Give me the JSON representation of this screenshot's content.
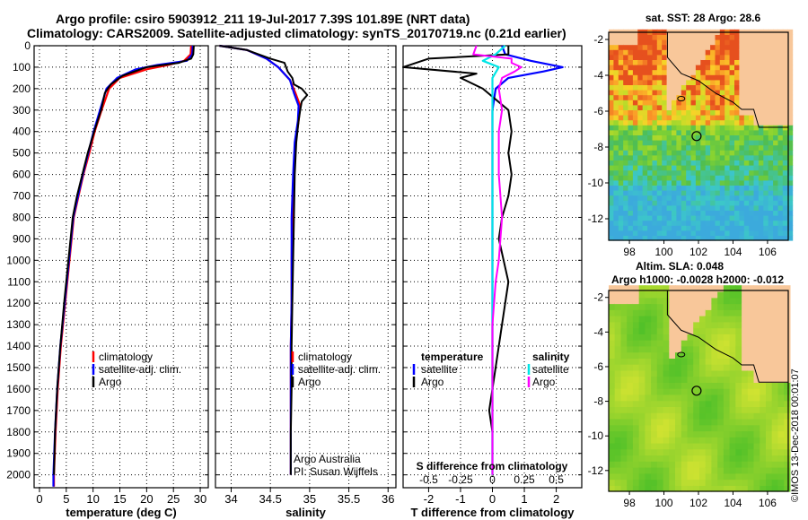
{
  "header": {
    "line1": "Argo profile: csiro 5903912_211 19-Jul-2017 7.39S 101.89E (NRT data)",
    "line2": "Climatology: CARS2009. Satellite-adjusted climatology: synTS_20170719.nc (0.21d earlier)"
  },
  "watermark": "©IMOS 13-Dec-2018 00:01:07",
  "colors": {
    "climatology": "#ff0000",
    "satellite": "#0000ff",
    "argo": "#000000",
    "sat_salinity": "#00e5e5",
    "argo_salinity": "#ff00ff",
    "land": "#f8c79a"
  },
  "chart_data": [
    {
      "id": "temperature",
      "type": "line",
      "xlabel": "temperature (deg C)",
      "ylabel": "",
      "xlim": [
        -1,
        31.5
      ],
      "ylim": [
        2060,
        0
      ],
      "xticks": [
        0,
        5,
        10,
        15,
        20,
        25,
        30
      ],
      "xtick_labels": [
        "0",
        "5",
        "10",
        "15",
        "20",
        "25",
        "30"
      ],
      "yticks": [
        0,
        100,
        200,
        300,
        400,
        500,
        600,
        700,
        800,
        900,
        1000,
        1100,
        1200,
        1300,
        1400,
        1500,
        1600,
        1700,
        1800,
        1900,
        2000
      ],
      "ytick_labels": [
        "0",
        "100",
        "200",
        "300",
        "400",
        "500",
        "600",
        "700",
        "800",
        "900",
        "1000",
        "1100",
        "1200",
        "1300",
        "1400",
        "1500",
        "1600",
        "1700",
        "1800",
        "1900",
        "2000"
      ],
      "grid": true,
      "legend": {
        "position": "lower-right",
        "entries": [
          "climatology",
          "satellite-adj. clim.",
          "Argo"
        ]
      },
      "series": [
        {
          "name": "climatology",
          "color": "#ff0000",
          "x": [
            28.3,
            28.2,
            27.0,
            24.0,
            20.0,
            15.0,
            13.0,
            11.6,
            10.3,
            9.3,
            8.2,
            7.3,
            6.4,
            5.6,
            4.8,
            4.0,
            3.4,
            3.0,
            2.7,
            2.7
          ],
          "y": [
            0,
            40,
            70,
            90,
            110,
            150,
            200,
            300,
            400,
            500,
            600,
            700,
            800,
            1000,
            1200,
            1400,
            1600,
            1800,
            2000,
            2055
          ]
        },
        {
          "name": "satellite-adj. clim.",
          "color": "#0000ff",
          "x": [
            28.6,
            28.5,
            27.5,
            22.0,
            18.0,
            14.5,
            12.5,
            11.3,
            10.1,
            9.1,
            8.1,
            7.2,
            6.3,
            5.5,
            4.7,
            3.9,
            3.3,
            2.9,
            2.6,
            2.6
          ],
          "y": [
            0,
            40,
            70,
            90,
            110,
            150,
            200,
            300,
            400,
            500,
            600,
            700,
            800,
            1000,
            1200,
            1400,
            1600,
            1800,
            2000,
            2055
          ]
        },
        {
          "name": "Argo",
          "color": "#000000",
          "x": [
            28.8,
            28.7,
            28.3,
            26.0,
            20.0,
            15.5,
            13.3,
            12.2,
            11.5,
            10.2,
            9.0,
            8.0,
            7.0,
            6.2,
            5.4,
            4.6,
            3.9,
            3.3,
            2.9,
            2.7
          ],
          "y": [
            0,
            40,
            60,
            80,
            100,
            140,
            180,
            220,
            300,
            400,
            500,
            600,
            700,
            800,
            1000,
            1200,
            1400,
            1600,
            1800,
            2000
          ]
        }
      ]
    },
    {
      "id": "salinity",
      "type": "line",
      "xlabel": "salinity",
      "ylabel": "",
      "xlim": [
        33.8,
        36.1
      ],
      "ylim": [
        2060,
        0
      ],
      "xticks": [
        34,
        34.5,
        35,
        35.5,
        36
      ],
      "xtick_labels": [
        "34",
        "34.5",
        "35",
        "35.5",
        "36"
      ],
      "grid": true,
      "legend": {
        "position": "lower-right",
        "entries": [
          "climatology",
          "satellite-adj. clim.",
          "Argo"
        ]
      },
      "annotations": [
        "Argo Australia",
        "PI: Susan Wijffels"
      ],
      "series": [
        {
          "name": "climatology",
          "color": "#ff0000",
          "x": [
            33.85,
            34.2,
            34.45,
            34.6,
            34.75,
            34.82,
            34.88,
            34.86,
            34.82,
            34.8,
            34.78,
            34.77,
            34.77,
            34.76,
            34.76,
            34.76,
            34.76
          ],
          "y": [
            0,
            20,
            60,
            100,
            160,
            220,
            280,
            350,
            450,
            600,
            800,
            1000,
            1200,
            1400,
            1600,
            1800,
            2000
          ]
        },
        {
          "name": "satellite-adj. clim.",
          "color": "#0000ff",
          "x": [
            33.85,
            34.2,
            34.45,
            34.6,
            34.75,
            34.8,
            34.86,
            34.85,
            34.81,
            34.79,
            34.77,
            34.77,
            34.77,
            34.76,
            34.76,
            34.76,
            34.76
          ],
          "y": [
            0,
            20,
            60,
            100,
            160,
            220,
            280,
            350,
            450,
            600,
            800,
            1000,
            1200,
            1400,
            1600,
            1800,
            2000
          ]
        },
        {
          "name": "Argo",
          "color": "#000000",
          "x": [
            33.85,
            34.2,
            34.5,
            34.68,
            34.72,
            34.78,
            34.8,
            34.9,
            34.97,
            34.9,
            34.88,
            34.86,
            34.83,
            34.81,
            34.8,
            34.79,
            34.78,
            34.77,
            34.77,
            34.76,
            34.76
          ],
          "y": [
            0,
            20,
            60,
            80,
            120,
            150,
            180,
            200,
            230,
            260,
            300,
            350,
            450,
            600,
            800,
            1000,
            1200,
            1400,
            1600,
            1800,
            2000
          ]
        }
      ]
    },
    {
      "id": "difference",
      "type": "line",
      "xlabel": "T difference from climatology",
      "ylabel": "",
      "xlim": [
        -2.8,
        2.8
      ],
      "ylim": [
        2060,
        0
      ],
      "xticks": [
        -2,
        -1,
        0,
        1,
        2
      ],
      "xtick_labels": [
        "-2",
        "-1",
        "0",
        "1",
        "2"
      ],
      "secondary_xlabel": "S difference from climatology",
      "secondary_xtick_labels": [
        "-0.5",
        "-0.25",
        "0",
        "0.25",
        "0.5"
      ],
      "secondary_xtick_positions": [
        -2,
        -1,
        0,
        1,
        2
      ],
      "grid": true,
      "legend": {
        "position": "lower-center",
        "groups": [
          {
            "title": "temperature",
            "entries": [
              "satellite",
              "Argo"
            ]
          },
          {
            "title": "salinity",
            "entries": [
              "satellite",
              "Argo"
            ]
          }
        ]
      },
      "series": [
        {
          "name": "satellite",
          "quantity": "temperature",
          "color": "#0000ff",
          "x": [
            0.3,
            0.4,
            1.2,
            2.2,
            1.6,
            0.5,
            0.1,
            0.0,
            0.0,
            0.0,
            0.0,
            0.0,
            0.0,
            0.0,
            0.0
          ],
          "y": [
            0,
            40,
            70,
            100,
            120,
            150,
            200,
            300,
            500,
            700,
            900,
            1200,
            1500,
            1800,
            2000
          ]
        },
        {
          "name": "Argo",
          "quantity": "temperature",
          "color": "#000000",
          "x": [
            0.5,
            0.5,
            -2.0,
            -2.8,
            -0.5,
            -1.0,
            -0.3,
            0.5,
            0.6,
            0.5,
            0.6,
            0.5,
            0.3,
            0.2,
            0.5,
            0.4,
            0.2,
            0.0,
            -0.1,
            0.0,
            0.0
          ],
          "y": [
            0,
            40,
            60,
            100,
            130,
            150,
            200,
            300,
            400,
            500,
            600,
            700,
            800,
            900,
            1100,
            1200,
            1400,
            1600,
            1700,
            1800,
            2000
          ]
        },
        {
          "name": "satellite",
          "quantity": "salinity",
          "color": "#00e5e5",
          "x": [
            0.4,
            0.1,
            -0.3,
            0.2,
            0.0,
            0.0,
            0.0,
            0.0,
            0.0,
            0.0,
            0.0,
            0.0,
            0.0,
            0.0,
            0.0
          ],
          "y": [
            0,
            40,
            70,
            100,
            150,
            200,
            300,
            400,
            500,
            700,
            900,
            1200,
            1500,
            1800,
            2000
          ]
        },
        {
          "name": "Argo",
          "quantity": "salinity",
          "color": "#ff00ff",
          "x": [
            -0.5,
            -0.6,
            0.6,
            0.6,
            0.9,
            0.7,
            0.3,
            0.2,
            0.3,
            0.2,
            0.2,
            0.3,
            0.2,
            0.1,
            0.0,
            0.0,
            0.0
          ],
          "y": [
            0,
            40,
            60,
            80,
            100,
            120,
            150,
            200,
            300,
            400,
            600,
            800,
            1000,
            1100,
            1300,
            1600,
            2000
          ]
        }
      ]
    },
    {
      "id": "sst_map",
      "type": "heatmap",
      "title": "sat. SST: 28 Argo: 28.6",
      "xlim": [
        96.8,
        107.2
      ],
      "ylim": [
        -13.2,
        -1.6
      ],
      "xticks": [
        98,
        100,
        102,
        104,
        106
      ],
      "xtick_labels": [
        "98",
        "100",
        "102",
        "104",
        "106"
      ],
      "yticks": [
        -2,
        -4,
        -6,
        -8,
        -10,
        -12
      ],
      "ytick_labels": [
        "-2",
        "-4",
        "-6",
        "-8",
        "-10",
        "-12"
      ],
      "profile_location": {
        "lon": 101.89,
        "lat": -7.39
      }
    },
    {
      "id": "sla_map",
      "type": "heatmap",
      "title": "Altim. SLA: 0.048",
      "subtitle": "Argo h1000: -0.0028 h2000: -0.012",
      "xlim": [
        96.8,
        107.2
      ],
      "ylim": [
        -13.2,
        -1.6
      ],
      "xticks": [
        98,
        100,
        102,
        104,
        106
      ],
      "xtick_labels": [
        "98",
        "100",
        "102",
        "104",
        "106"
      ],
      "yticks": [
        -2,
        -4,
        -6,
        -8,
        -10,
        -12
      ],
      "ytick_labels": [
        "-2",
        "-4",
        "-6",
        "-8",
        "-10",
        "-12"
      ],
      "profile_location": {
        "lon": 101.89,
        "lat": -7.39
      }
    }
  ]
}
